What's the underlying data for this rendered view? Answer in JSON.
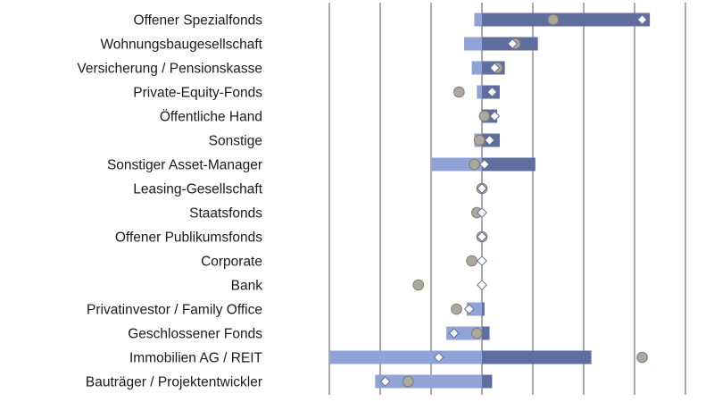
{
  "chart_data": {
    "type": "bar",
    "title": "",
    "xlabel": "",
    "ylabel": "",
    "xlim": [
      -6,
      8
    ],
    "orientation": "horizontal",
    "categories": [
      "Offener Spezialfonds",
      "Wohnungsbaugesellschaft",
      "Versicherung / Pensionskasse",
      "Private-Equity-Fonds",
      "Öffentliche Hand",
      "Sonstige",
      "Sonstiger Asset-Manager",
      "Leasing-Gesellschaft",
      "Staatsfonds",
      "Offener Publikumsfonds",
      "Corporate",
      "Bank",
      "Privatinvestor / Family Office",
      "Geschlossener Fonds",
      "Immobilien AG / REIT",
      "Bauträger / Projektentwickler"
    ],
    "series": [
      {
        "values": [
          -0.3,
          -0.7,
          -0.4,
          -0.2,
          0,
          -0.3,
          -2.0,
          0,
          0,
          0,
          0,
          0,
          -0.6,
          -1.4,
          -6.0,
          -4.2
        ]
      },
      {
        "values": [
          6.6,
          2.2,
          0.9,
          0.7,
          0.6,
          0.7,
          2.1,
          0,
          0,
          0,
          0,
          0,
          0.1,
          0.3,
          4.3,
          0.4
        ]
      },
      {
        "values": [
          2.8,
          1.3,
          0.6,
          -0.9,
          0.1,
          -0.1,
          -0.3,
          0,
          -0.2,
          0,
          -0.4,
          -2.5,
          -1.0,
          -0.2,
          6.3,
          -2.9
        ]
      },
      {
        "values": [
          6.3,
          1.2,
          0.5,
          0.4,
          0.5,
          0.3,
          0.1,
          0,
          0,
          0,
          0,
          0,
          -0.5,
          -1.1,
          -1.7,
          -3.8
        ]
      }
    ],
    "grid": true,
    "colors": {
      "negative_bar": "#8fa3d6",
      "positive_bar": "#5f6e9e",
      "circle_fill": "#aca89b",
      "circle_stroke": "#807c72",
      "diamond_fill": "#ffffff",
      "diamond_stroke": "#5f6e9e",
      "gridline": "#555555"
    }
  }
}
